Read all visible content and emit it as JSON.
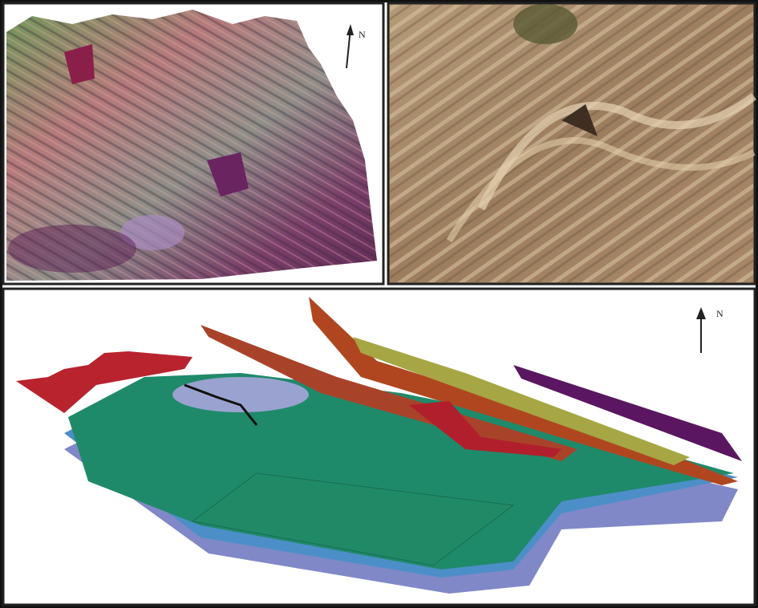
{
  "terrain_panel": {
    "north_label": "N"
  },
  "model_panel": {
    "north_label": "N"
  }
}
